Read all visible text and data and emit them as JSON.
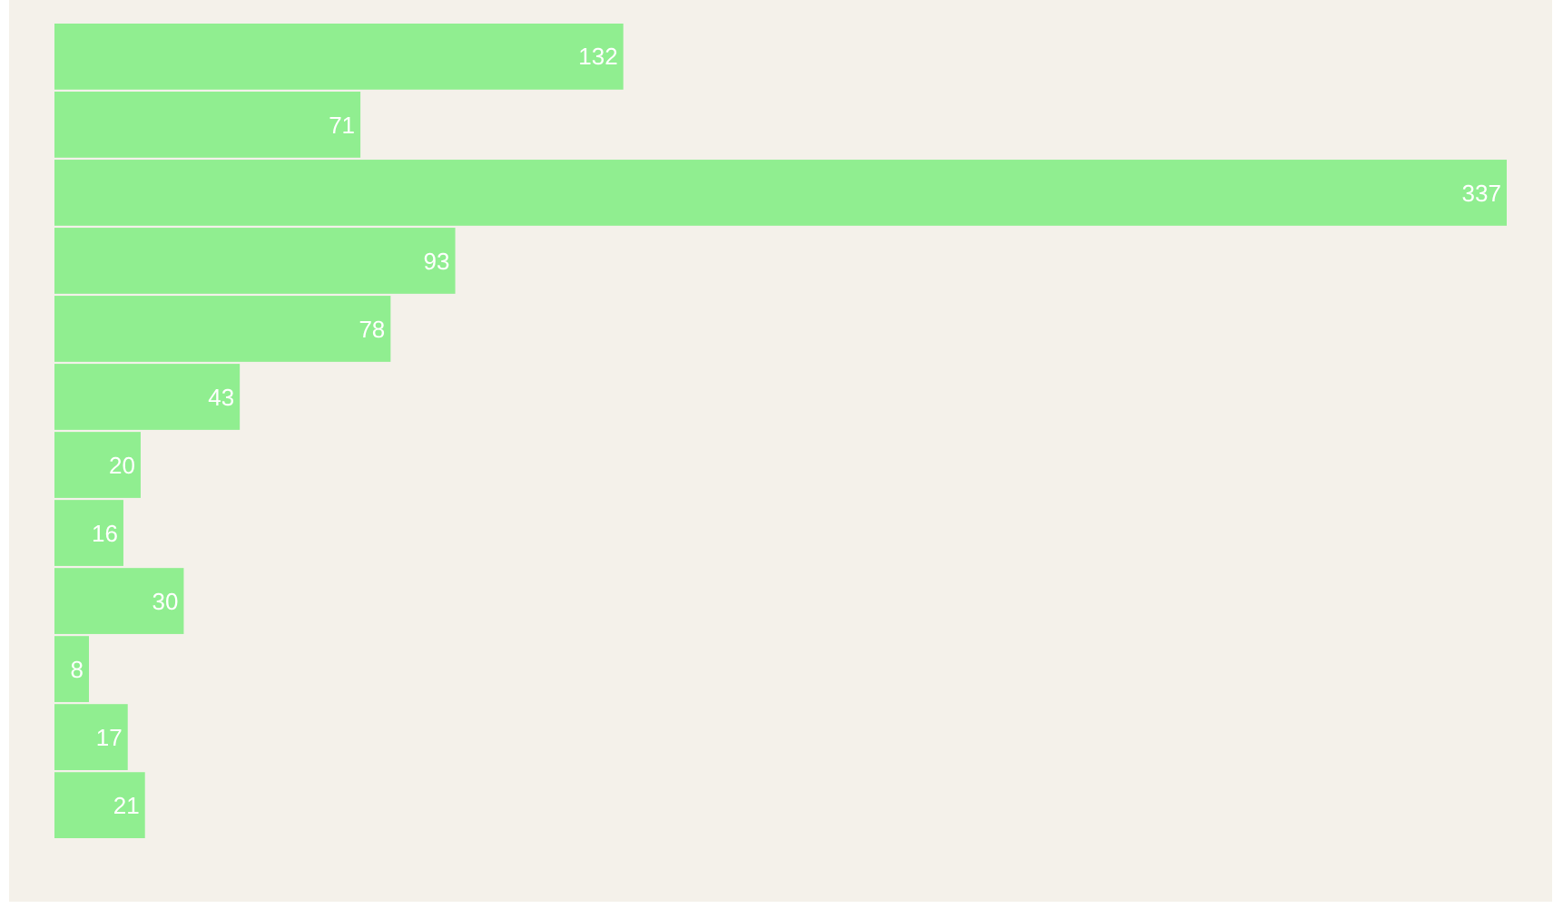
{
  "chart_data": {
    "type": "bar",
    "orientation": "horizontal",
    "categories": [
      null,
      null,
      null,
      null,
      null,
      null,
      null,
      null,
      null,
      null,
      null,
      null
    ],
    "values": [
      132,
      71,
      337,
      93,
      78,
      43,
      20,
      16,
      30,
      8,
      17,
      21
    ],
    "color": "#90ee90",
    "xlim": [
      0,
      337
    ],
    "data_labels": true
  }
}
